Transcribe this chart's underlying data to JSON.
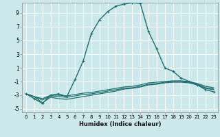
{
  "xlabel": "Humidex (Indice chaleur)",
  "bg_color": "#cce8ea",
  "grid_color": "#ffffff",
  "line_color": "#1e6e6e",
  "xlim": [
    -0.5,
    23.5
  ],
  "ylim": [
    -5.5,
    10.5
  ],
  "xticks": [
    0,
    1,
    2,
    3,
    4,
    5,
    6,
    7,
    8,
    9,
    10,
    11,
    12,
    13,
    14,
    15,
    16,
    17,
    18,
    19,
    20,
    21,
    22,
    23
  ],
  "yticks": [
    -5,
    -3,
    -1,
    1,
    3,
    5,
    7,
    9
  ],
  "lines": [
    {
      "x": [
        0,
        1,
        2,
        3,
        4,
        5,
        6,
        7,
        8,
        9,
        10,
        11,
        12,
        13,
        14,
        15,
        16,
        17,
        18,
        19,
        20,
        21,
        22,
        23
      ],
      "y": [
        -2.8,
        -3.2,
        -3.5,
        -3.0,
        -3.0,
        -3.1,
        -2.9,
        -2.7,
        -2.6,
        -2.4,
        -2.2,
        -2.0,
        -1.8,
        -1.7,
        -1.5,
        -1.2,
        -1.1,
        -1.0,
        -0.9,
        -0.9,
        -1.0,
        -1.3,
        -1.7,
        -1.9
      ],
      "marker": false,
      "lw": 0.9
    },
    {
      "x": [
        0,
        1,
        2,
        3,
        4,
        5,
        6,
        7,
        8,
        9,
        10,
        11,
        12,
        13,
        14,
        15,
        16,
        17,
        18,
        19,
        20,
        21,
        22,
        23
      ],
      "y": [
        -2.8,
        -3.2,
        -3.7,
        -3.1,
        -3.2,
        -3.3,
        -3.1,
        -2.9,
        -2.8,
        -2.6,
        -2.4,
        -2.2,
        -2.0,
        -1.9,
        -1.7,
        -1.4,
        -1.3,
        -1.1,
        -1.0,
        -1.0,
        -1.1,
        -1.4,
        -1.9,
        -2.1
      ],
      "marker": false,
      "lw": 0.9
    },
    {
      "x": [
        0,
        1,
        2,
        3,
        4,
        5,
        6,
        7,
        8,
        9,
        10,
        11,
        12,
        13,
        14,
        15,
        16,
        17,
        18,
        19,
        20,
        21,
        22,
        23
      ],
      "y": [
        -2.8,
        -3.2,
        -4.1,
        -3.3,
        -3.5,
        -3.6,
        -3.4,
        -3.2,
        -3.0,
        -2.8,
        -2.6,
        -2.4,
        -2.1,
        -2.0,
        -1.8,
        -1.5,
        -1.4,
        -1.2,
        -1.1,
        -1.1,
        -1.2,
        -1.5,
        -2.0,
        -2.2
      ],
      "marker": false,
      "lw": 0.9
    },
    {
      "x": [
        0,
        1,
        2,
        3,
        4,
        5,
        6,
        7,
        8,
        9,
        10,
        11,
        12,
        13,
        14,
        15,
        16,
        17,
        18,
        19,
        20,
        21,
        22,
        23
      ],
      "y": [
        -2.8,
        -3.5,
        -4.2,
        -3.0,
        -2.8,
        -3.2,
        -0.7,
        2.0,
        6.0,
        8.0,
        9.2,
        10.0,
        10.3,
        10.5,
        10.4,
        6.3,
        3.8,
        1.0,
        0.5,
        -0.5,
        -1.0,
        -1.5,
        -2.2,
        -2.5
      ],
      "marker": true,
      "lw": 1.0
    }
  ]
}
